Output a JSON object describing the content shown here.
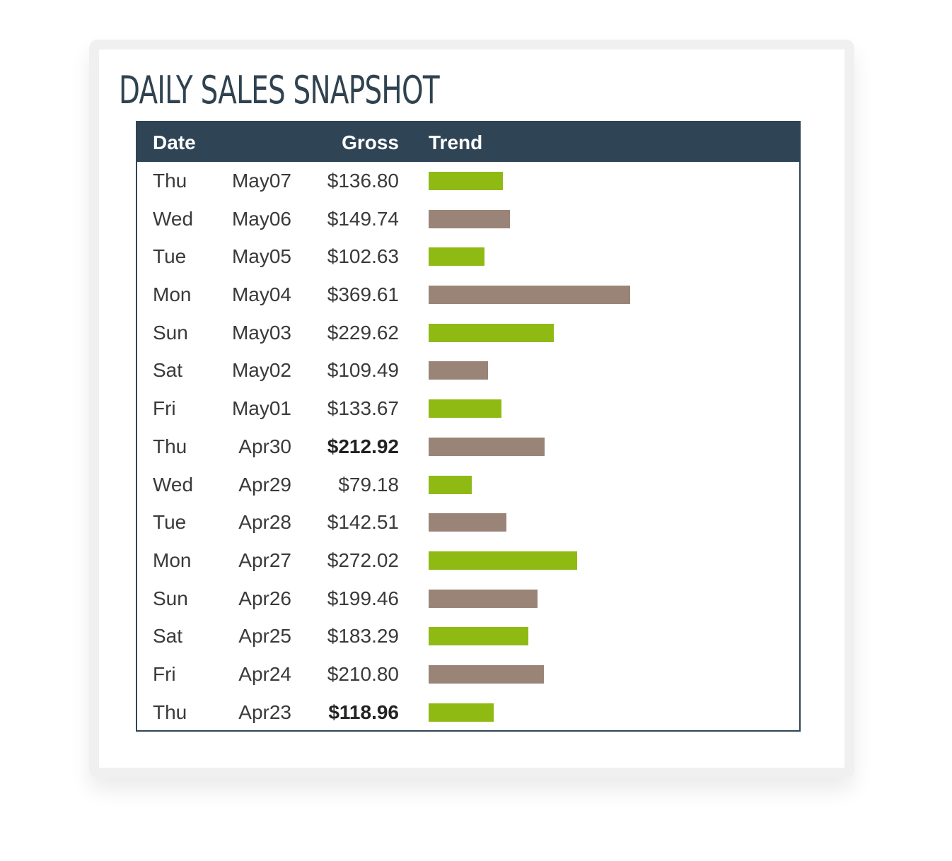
{
  "title": "DAILY SALES SNAPSHOT",
  "colors": {
    "header_bg": "#2f4555",
    "bar_green": "#8fba14",
    "bar_taupe": "#9a8478"
  },
  "table": {
    "headers": {
      "date": "Date",
      "gross": "Gross",
      "trend": "Trend"
    },
    "rows": [
      {
        "day": "Thu",
        "date": "May07",
        "gross": "$136.80",
        "value": 136.8,
        "bold": false,
        "color": "green"
      },
      {
        "day": "Wed",
        "date": "May06",
        "gross": "$149.74",
        "value": 149.74,
        "bold": false,
        "color": "taupe"
      },
      {
        "day": "Tue",
        "date": "May05",
        "gross": "$102.63",
        "value": 102.63,
        "bold": false,
        "color": "green"
      },
      {
        "day": "Mon",
        "date": "May04",
        "gross": "$369.61",
        "value": 369.61,
        "bold": false,
        "color": "taupe"
      },
      {
        "day": "Sun",
        "date": "May03",
        "gross": "$229.62",
        "value": 229.62,
        "bold": false,
        "color": "green"
      },
      {
        "day": "Sat",
        "date": "May02",
        "gross": "$109.49",
        "value": 109.49,
        "bold": false,
        "color": "taupe"
      },
      {
        "day": "Fri",
        "date": "May01",
        "gross": "$133.67",
        "value": 133.67,
        "bold": false,
        "color": "green"
      },
      {
        "day": "Thu",
        "date": "Apr30",
        "gross": "$212.92",
        "value": 212.92,
        "bold": true,
        "color": "taupe"
      },
      {
        "day": "Wed",
        "date": "Apr29",
        "gross": "$79.18",
        "value": 79.18,
        "bold": false,
        "color": "green"
      },
      {
        "day": "Tue",
        "date": "Apr28",
        "gross": "$142.51",
        "value": 142.51,
        "bold": false,
        "color": "taupe"
      },
      {
        "day": "Mon",
        "date": "Apr27",
        "gross": "$272.02",
        "value": 272.02,
        "bold": false,
        "color": "green"
      },
      {
        "day": "Sun",
        "date": "Apr26",
        "gross": "$199.46",
        "value": 199.46,
        "bold": false,
        "color": "taupe"
      },
      {
        "day": "Sat",
        "date": "Apr25",
        "gross": "$183.29",
        "value": 183.29,
        "bold": false,
        "color": "green"
      },
      {
        "day": "Fri",
        "date": "Apr24",
        "gross": "$210.80",
        "value": 210.8,
        "bold": false,
        "color": "taupe"
      },
      {
        "day": "Thu",
        "date": "Apr23",
        "gross": "$118.96",
        "value": 118.96,
        "bold": true,
        "color": "green"
      }
    ]
  }
}
